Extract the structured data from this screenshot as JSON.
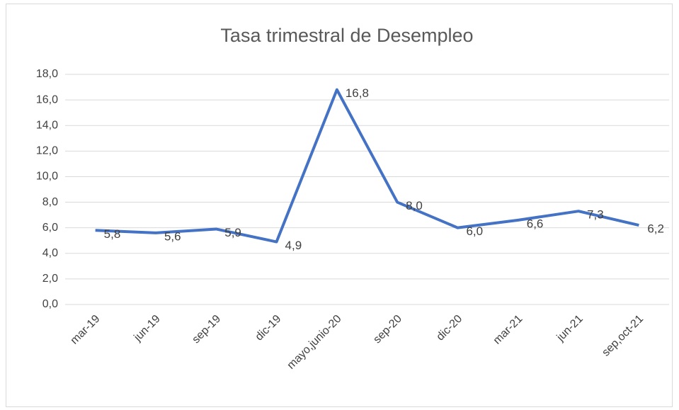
{
  "chart_data": {
    "type": "line",
    "title": "Tasa  trimestral de Desempleo",
    "categories": [
      "mar-19",
      "jun-19",
      "sep-19",
      "dic-19",
      "mayo,junio-20",
      "sep-20",
      "dic-20",
      "mar-21",
      "jun-21",
      "sep,oct-21"
    ],
    "values": [
      5.8,
      5.6,
      5.9,
      4.9,
      16.8,
      8.0,
      6.0,
      6.6,
      7.3,
      6.2
    ],
    "value_labels": [
      "5,8",
      "5,6",
      "5,9",
      "4,9",
      "16,8",
      "8,0",
      "6,0",
      "6,6",
      "7,3",
      "6,2"
    ],
    "color": "#4472c4",
    "ylim": [
      0,
      18
    ],
    "yticks": [
      {
        "value": 0,
        "label": "0,0"
      },
      {
        "value": 2,
        "label": "2,0"
      },
      {
        "value": 4,
        "label": "4,0"
      },
      {
        "value": 6,
        "label": "6,0"
      },
      {
        "value": 8,
        "label": "8,0"
      },
      {
        "value": 10,
        "label": "10,0"
      },
      {
        "value": 12,
        "label": "12,0"
      },
      {
        "value": 14,
        "label": "14,0"
      },
      {
        "value": 16,
        "label": "16,0"
      },
      {
        "value": 18,
        "label": "18,0"
      }
    ],
    "grid": true
  }
}
